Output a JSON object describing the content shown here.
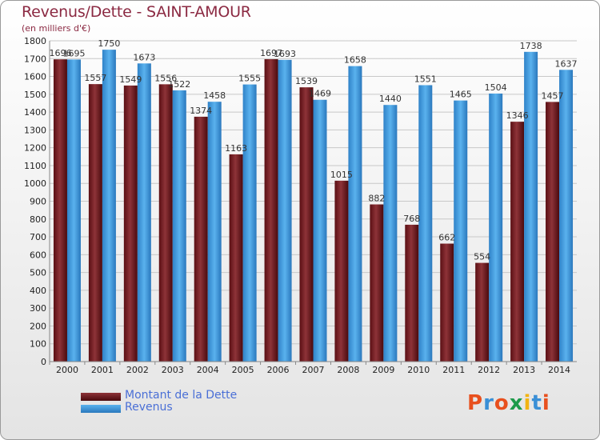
{
  "header": {
    "title": "Revenus/Dette - SAINT-AMOUR",
    "subtitle": "(en milliers d'€)"
  },
  "colors": {
    "dette": "#6e1a1f",
    "revenus": "#3e9be0",
    "grid": "#c8c8c8",
    "axis_text": "#222222"
  },
  "legend": {
    "items": [
      {
        "label": "Montant de la Dette",
        "color": "#6e1a1f"
      },
      {
        "label": "Revenus",
        "color": "#3e9be0"
      }
    ]
  },
  "logo": {
    "text": "Proxiti",
    "colors": [
      "#e8501e",
      "#3a8fd6",
      "#e8501e",
      "#1d9a4a",
      "#f2b312",
      "#3a8fd6",
      "#e8501e"
    ]
  },
  "chart_data": {
    "type": "bar",
    "categories": [
      "2000",
      "2001",
      "2002",
      "2003",
      "2004",
      "2005",
      "2006",
      "2007",
      "2008",
      "2009",
      "2010",
      "2011",
      "2012",
      "2013",
      "2014"
    ],
    "series": [
      {
        "name": "Montant de la Dette",
        "values": [
          1696,
          1557,
          1549,
          1556,
          1374,
          1163,
          1697,
          1539,
          1015,
          882,
          768,
          662,
          554,
          1346,
          1457
        ]
      },
      {
        "name": "Revenus",
        "values": [
          1695,
          1750,
          1673,
          1522,
          1458,
          1555,
          1693,
          1469,
          1658,
          1440,
          1551,
          1465,
          1504,
          1738,
          1637
        ]
      }
    ],
    "data_labels": [
      [
        "1696",
        "1557",
        "1549",
        "1556",
        "1374",
        "1163",
        "1697",
        "1539",
        "1015",
        "882",
        "768",
        "662",
        "554",
        "1346",
        "1457"
      ],
      [
        "1695",
        "1750",
        "1673",
        "1522",
        "1458",
        "1555",
        "1693",
        "1469",
        "1658",
        "1440",
        "1551",
        "1465",
        "1504",
        "1738",
        "1637"
      ]
    ],
    "ylim": [
      0,
      1800
    ],
    "yticks": [
      0,
      100,
      200,
      300,
      400,
      500,
      600,
      700,
      800,
      900,
      1000,
      1100,
      1200,
      1300,
      1400,
      1500,
      1600,
      1700,
      1800
    ],
    "grid": true,
    "legend_position": "bottom-left"
  }
}
